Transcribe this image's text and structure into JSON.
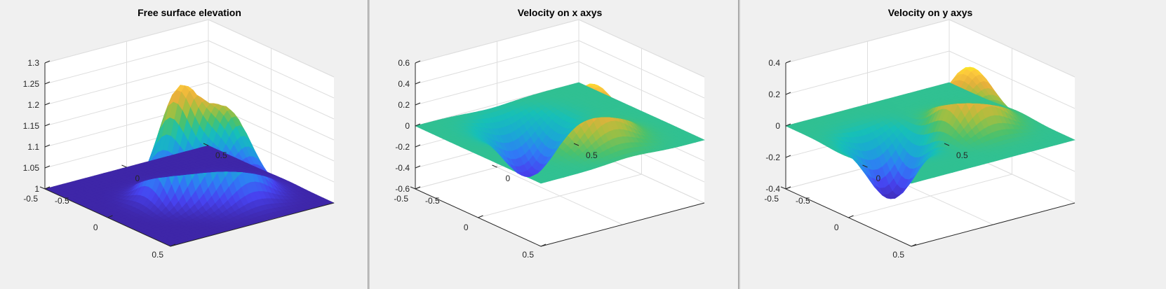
{
  "window": {
    "background": "#f0f0f0"
  },
  "colormap": [
    "#3e26a8",
    "#4743f0",
    "#2f7cf6",
    "#1aa8d4",
    "#17c0b7",
    "#4ac16d",
    "#a7bf3f",
    "#e7b03b",
    "#fcc93c",
    "#f9fb15"
  ],
  "chart_data": [
    {
      "type": "surface",
      "title": "Free surface elevation",
      "xlim": [
        -0.5,
        0.5
      ],
      "ylim": [
        -0.5,
        0.5
      ],
      "zlim": [
        1,
        1.3
      ],
      "x_ticks": [
        "-0.5",
        "0",
        "0.5"
      ],
      "y_ticks": [
        "-0.5",
        "0",
        "0.5"
      ],
      "z_ticks": [
        "1",
        "1.05",
        "1.1",
        "1.15",
        "1.2",
        "1.25",
        "1.3"
      ],
      "z_tick_values": [
        1,
        1.05,
        1.1,
        1.15,
        1.2,
        1.25,
        1.3
      ],
      "grid": true,
      "series": [
        {
          "shape": "gaussian",
          "amplitude": 0.24,
          "center_x": -0.07,
          "center_y": 0.0,
          "sigma": 0.1
        },
        {
          "shape": "gaussian",
          "amplitude": 0.2,
          "center_x": 0.14,
          "center_y": 0.12,
          "sigma": 0.12
        }
      ]
    },
    {
      "type": "surface",
      "title": "Velocity on x axys",
      "xlim": [
        -0.5,
        0.5
      ],
      "ylim": [
        -0.5,
        0.5
      ],
      "zlim": [
        -0.6,
        0.6
      ],
      "x_ticks": [
        "-0.5",
        "0",
        "0.5"
      ],
      "y_ticks": [
        "-0.5",
        "0",
        "0.5"
      ],
      "z_ticks": [
        "-0.6",
        "-0.4",
        "-0.2",
        "0",
        "0.2",
        "0.4",
        "0.6"
      ],
      "z_tick_values": [
        -0.6,
        -0.4,
        -0.2,
        0,
        0.2,
        0.4,
        0.6
      ],
      "grid": true,
      "series": [
        {
          "shape": "gaussian",
          "amplitude": 0.55,
          "center_x": 0.05,
          "center_y": 0.18,
          "sigma": 0.13
        },
        {
          "shape": "gaussian",
          "amplitude": -0.5,
          "center_x": -0.05,
          "center_y": -0.18,
          "sigma": 0.13
        }
      ]
    },
    {
      "type": "surface",
      "title": "Velocity on y axys",
      "xlim": [
        -0.5,
        0.5
      ],
      "ylim": [
        -0.5,
        0.5
      ],
      "zlim": [
        -0.4,
        0.4
      ],
      "x_ticks": [
        "-0.5",
        "0",
        "0.5"
      ],
      "y_ticks": [
        "-0.5",
        "0",
        "0.5"
      ],
      "z_ticks": [
        "-0.4",
        "-0.2",
        "0",
        "0.2",
        "0.4"
      ],
      "z_tick_values": [
        -0.4,
        -0.2,
        0,
        0.2,
        0.4
      ],
      "grid": true,
      "series": [
        {
          "shape": "gaussian",
          "amplitude": 0.38,
          "center_x": 0.2,
          "center_y": 0.05,
          "sigma": 0.12
        },
        {
          "shape": "gaussian",
          "amplitude": -0.38,
          "center_x": -0.2,
          "center_y": -0.05,
          "sigma": 0.12
        }
      ]
    }
  ]
}
